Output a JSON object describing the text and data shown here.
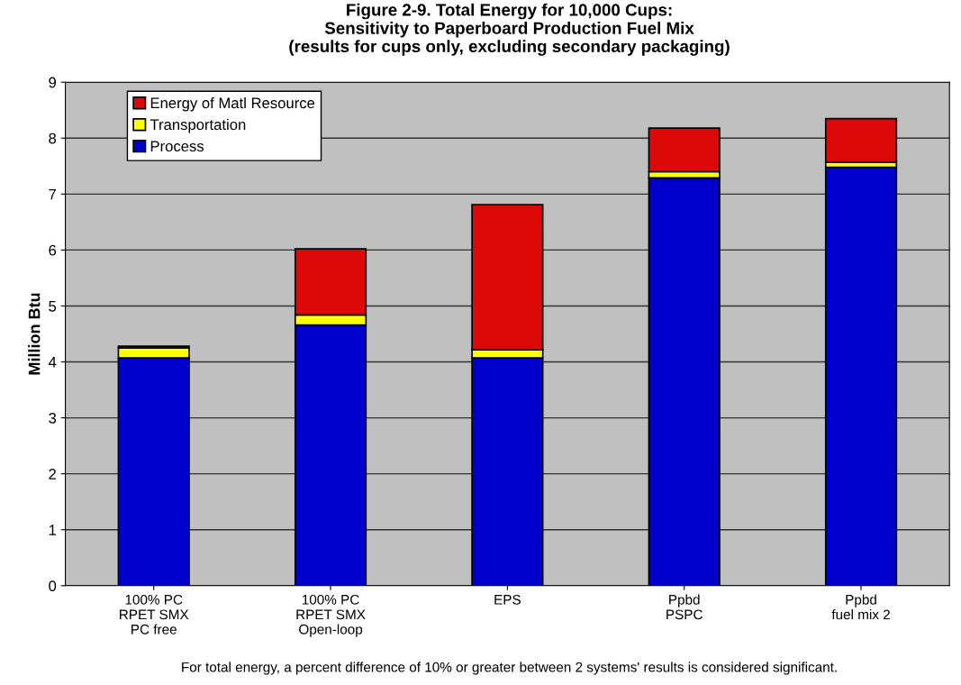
{
  "chart_data": {
    "type": "bar",
    "stacked": true,
    "title": "Figure 2-9. Total Energy for 10,000 Cups:\nSensitivity to Paperboard Production Fuel Mix\n(results for cups only, excluding secondary packaging)",
    "ylabel": "Million Btu",
    "categories": [
      "100% PC\nRPET SMX\nPC free",
      "100% PC\nRPET SMX\nOpen-loop",
      "EPS",
      "Ppbd\nPSPC",
      "Ppbd\nfuel mix 2"
    ],
    "series": [
      {
        "name": "Process",
        "color": "#0000cc",
        "values": [
          4.07,
          4.66,
          4.07,
          7.29,
          7.48
        ]
      },
      {
        "name": "Transportation",
        "color": "#ffff00",
        "values": [
          0.18,
          0.18,
          0.15,
          0.11,
          0.09
        ]
      },
      {
        "name": "Energy of Matl Resource",
        "color": "#dd0808",
        "values": [
          0.03,
          1.18,
          2.59,
          0.78,
          0.78
        ]
      }
    ],
    "ylim": [
      0,
      9
    ],
    "yticks": [
      0,
      1,
      2,
      3,
      4,
      5,
      6,
      7,
      8,
      9
    ],
    "grid": "y",
    "legend": "top left",
    "annotations": [
      "For total energy, a percent difference of 10% or greater between 2 systems' results is considered significant."
    ]
  }
}
